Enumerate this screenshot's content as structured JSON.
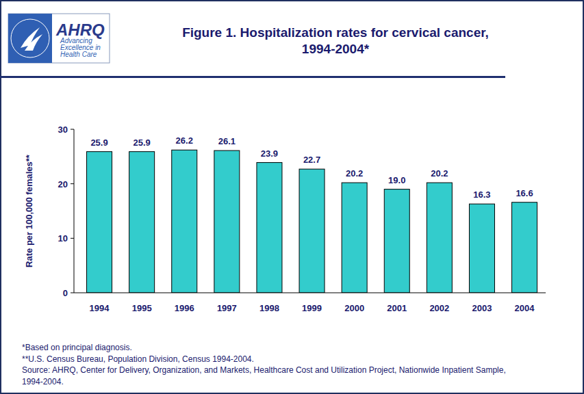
{
  "chart_data": {
    "type": "bar",
    "title": [
      "Figure 1. Hospitalization rates for cervical cancer,",
      "1994-2004*"
    ],
    "ylabel": "Rate per 100,000 females**",
    "categories": [
      "1994",
      "1995",
      "1996",
      "1997",
      "1998",
      "1999",
      "2000",
      "2001",
      "2002",
      "2003",
      "2004"
    ],
    "values": [
      25.9,
      25.9,
      26.2,
      26.1,
      23.9,
      22.7,
      20.2,
      19.0,
      20.2,
      16.3,
      16.6
    ],
    "value_labels": [
      "25.9",
      "25.9",
      "26.2",
      "26.1",
      "23.9",
      "22.7",
      "20.2",
      "19.0",
      "20.2",
      "16.3",
      "16.6"
    ],
    "color": "#33cccc",
    "ylim": [
      0,
      30
    ],
    "yticks": [
      0,
      10,
      20,
      30
    ],
    "grid": false,
    "data_labels": true,
    "notes": [
      "*Based on principal diagnosis.",
      "**U.S. Census Bureau, Population Division, Census 1994-2004.",
      "Source: AHRQ, Center for Delivery, Organization, and Markets, Healthcare Cost and Utilization Project, Nationwide Inpatient Sample,",
      "1994-2004."
    ]
  },
  "logo": {
    "name": "AHRQ",
    "tagline": [
      "Advancing",
      "Excellence in",
      "Health Care"
    ]
  }
}
